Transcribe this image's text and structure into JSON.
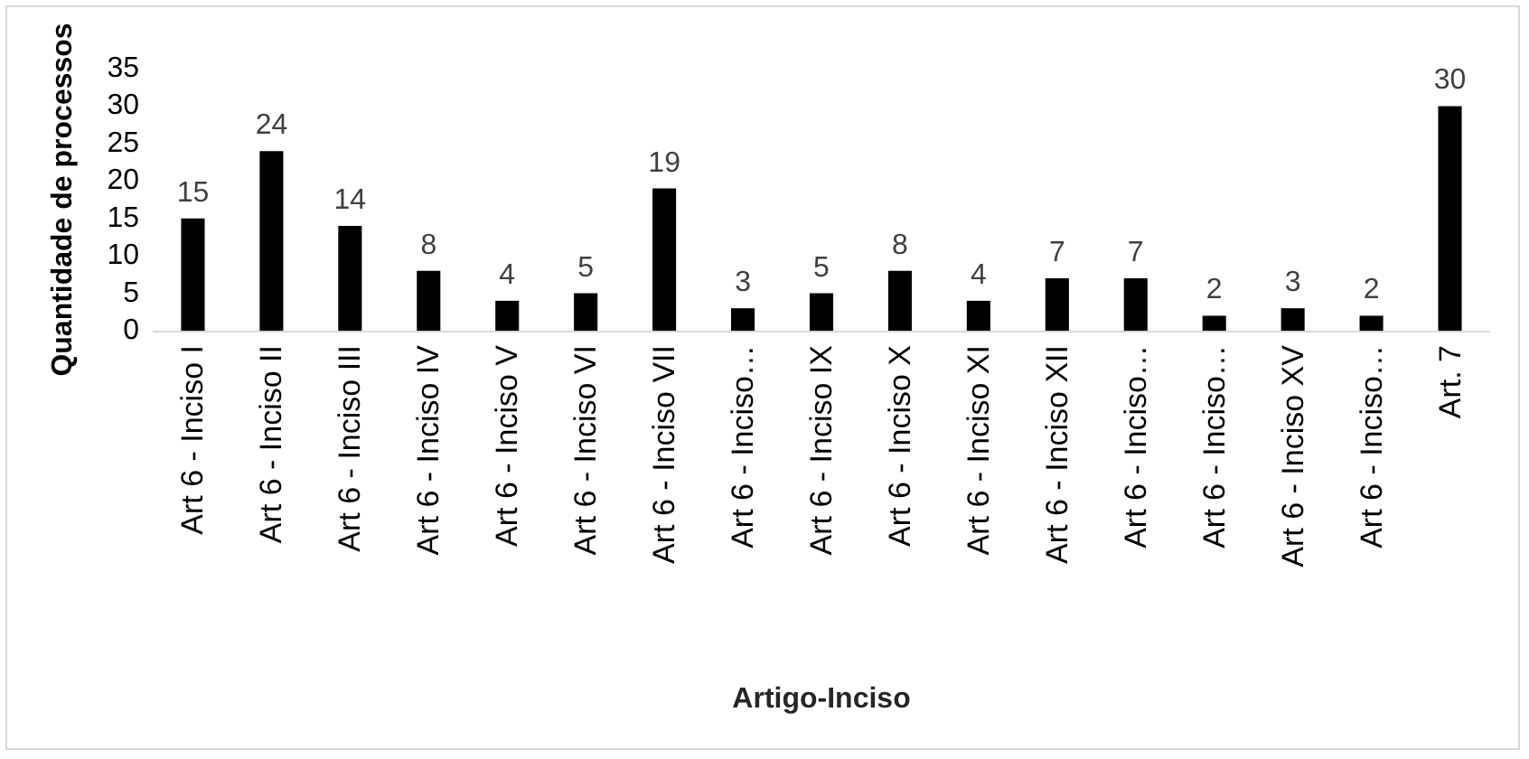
{
  "chart_data": {
    "type": "bar",
    "xlabel": "Artigo-Inciso",
    "ylabel": "Quantidade de processos",
    "categories": [
      "Art 6 - Inciso I",
      "Art 6 - Inciso II",
      "Art 6 - Inciso III",
      "Art 6 - Inciso IV",
      "Art 6 - Inciso V",
      "Art 6 - Inciso VI",
      "Art 6 - Inciso VII",
      "Art 6 - Inciso…",
      "Art 6 - Inciso IX",
      "Art 6 - Inciso X",
      "Art 6 - Inciso XI",
      "Art 6 - Inciso XII",
      "Art 6 - Inciso…",
      "Art 6 - Inciso…",
      "Art 6 - Inciso XV",
      "Art 6 - Inciso…",
      "Art. 7"
    ],
    "values": [
      15,
      24,
      14,
      8,
      4,
      5,
      19,
      3,
      5,
      8,
      4,
      7,
      7,
      2,
      3,
      2,
      30
    ],
    "color": "#000000",
    "ylim": [
      0,
      35
    ],
    "yticks": [
      0,
      5,
      10,
      15,
      20,
      25,
      30,
      35
    ],
    "grid": false,
    "data_labels": true
  }
}
